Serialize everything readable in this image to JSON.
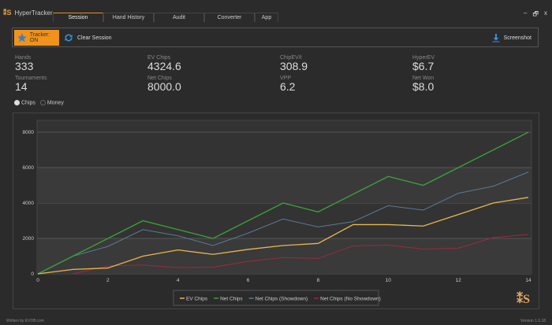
{
  "app": {
    "title": "HyperTracker",
    "logo": "HS"
  },
  "tabs": [
    "Session",
    "Hand History",
    "Audit",
    "Converter",
    "App"
  ],
  "window": {
    "minimize": "–",
    "restore": "🗗",
    "close": "x"
  },
  "toolbar": {
    "tracker": "Tracker: ON",
    "clear": "Clear Session",
    "screenshot": "Screenshot"
  },
  "stats": [
    {
      "label": "Hands",
      "value": "333"
    },
    {
      "label": "EV Chips",
      "value": "4324.6"
    },
    {
      "label": "ChipEV/t",
      "value": "308.9"
    },
    {
      "label": "HyperEV",
      "value": "$6.7"
    },
    {
      "label": "Tournaments",
      "value": "14"
    },
    {
      "label": "Net Chips",
      "value": "8000.0"
    },
    {
      "label": "VPP",
      "value": "6.2"
    },
    {
      "label": "Net Won",
      "value": "$8.0"
    }
  ],
  "mode": {
    "chips": "Chips",
    "money": "Money",
    "selected": "Chips"
  },
  "footer": {
    "left": "Written by EVOff.com",
    "right": "Version 1.0.18"
  },
  "colors": {
    "accent": "#f0921c",
    "ev": "#e8b84a",
    "net": "#3aa13a",
    "showdown": "#5a7a96",
    "noshowdown": "#a0283c"
  },
  "chart_data": {
    "type": "line",
    "x": [
      0,
      1,
      2,
      3,
      4,
      5,
      6,
      7,
      8,
      9,
      10,
      11,
      12,
      13,
      14
    ],
    "xticks": [
      0,
      2,
      4,
      6,
      8,
      10,
      12,
      14
    ],
    "yticks": [
      0,
      2000,
      4000,
      6000,
      8000
    ],
    "xlim": [
      0,
      14
    ],
    "ylim": [
      0,
      8000
    ],
    "legend_position": "bottom-center",
    "series": [
      {
        "name": "EV Chips",
        "color": "#e8b84a",
        "values": [
          0,
          250,
          330,
          1000,
          1350,
          1100,
          1380,
          1600,
          1720,
          2780,
          2780,
          2700,
          3350,
          4000,
          4320
        ]
      },
      {
        "name": "Net Chips",
        "color": "#3aa13a",
        "values": [
          0,
          1000,
          2000,
          3000,
          2500,
          2000,
          3000,
          4000,
          3500,
          4500,
          5500,
          5000,
          6000,
          7000,
          8000
        ]
      },
      {
        "name": "Net Chips (Showdown)",
        "color": "#5a7a96",
        "values": [
          0,
          1000,
          1550,
          2500,
          2150,
          1600,
          2300,
          3100,
          2650,
          2950,
          3850,
          3600,
          4550,
          4950,
          5750
        ]
      },
      {
        "name": "Net Chips (No Showdown)",
        "color": "#a0283c",
        "values": [
          null,
          0,
          450,
          500,
          350,
          380,
          700,
          920,
          870,
          1580,
          1620,
          1400,
          1450,
          2050,
          2230
        ]
      }
    ]
  }
}
